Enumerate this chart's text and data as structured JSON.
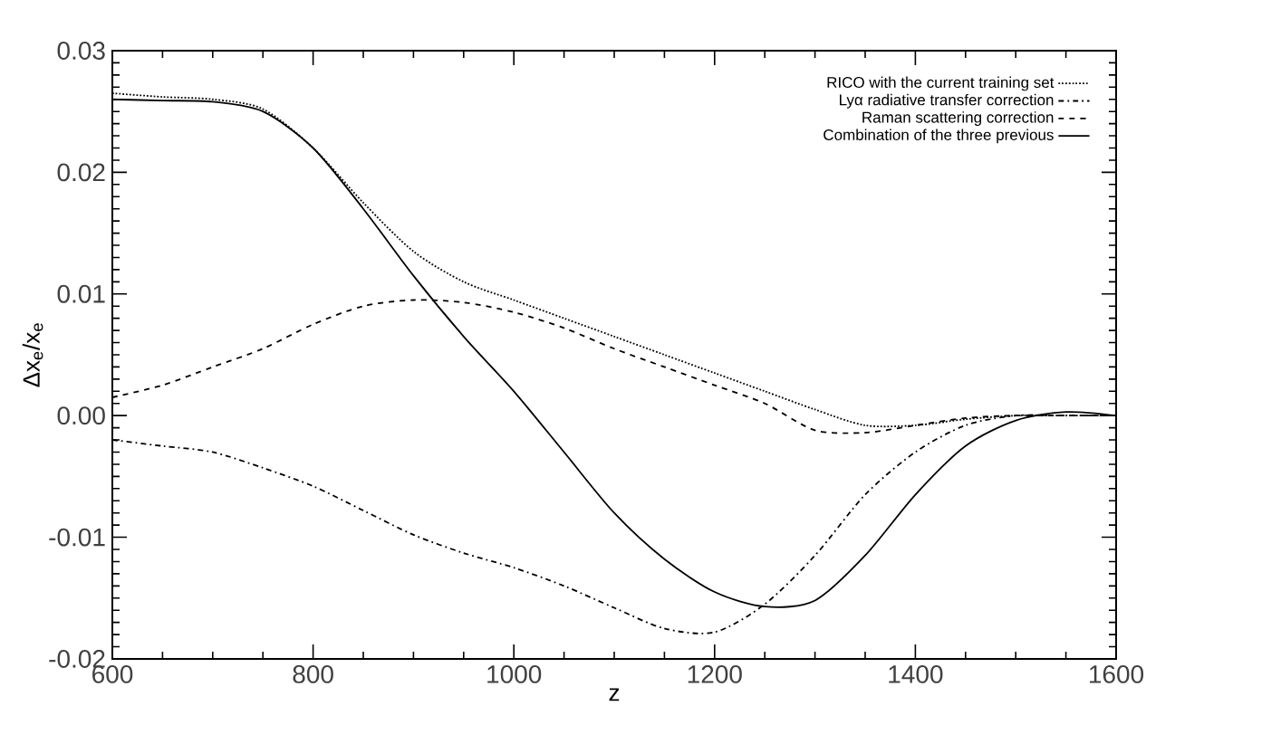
{
  "chart_data": {
    "type": "line",
    "xlabel": "z",
    "ylabel": "Δx$_{e}$/x$_{e}$",
    "xlim": [
      600,
      1600
    ],
    "ylim": [
      -0.02,
      0.03
    ],
    "xticks": [
      600,
      800,
      1000,
      1200,
      1400,
      1600
    ],
    "yticks": [
      {
        "value": -0.02,
        "label": "-0.02"
      },
      {
        "value": -0.01,
        "label": "-0.01"
      },
      {
        "value": 0,
        "label": "0.00"
      },
      {
        "value": 0.01,
        "label": "0.01"
      },
      {
        "value": 0.02,
        "label": "0.02"
      },
      {
        "value": 0.03,
        "label": "0.03"
      }
    ],
    "grid": false,
    "legend": "top right",
    "marker": "none",
    "x": [
      600,
      650,
      700,
      750,
      800,
      850,
      900,
      950,
      1000,
      1050,
      1100,
      1150,
      1200,
      1250,
      1300,
      1350,
      1400,
      1450,
      1500,
      1550,
      1600
    ],
    "series": [
      {
        "name": "RICO with the current training set",
        "color": "#000000",
        "line_style": "dotted",
        "values": [
          0.0265,
          0.0262,
          0.026,
          0.0252,
          0.022,
          0.0175,
          0.0135,
          0.011,
          0.0095,
          0.008,
          0.0065,
          0.005,
          0.0035,
          0.002,
          0.0005,
          -0.0008,
          -0.0008,
          -0.0003,
          0.0,
          0.0,
          0.0
        ]
      },
      {
        "name": "Lyα radiative transfer correction",
        "color": "#000000",
        "line_style": "dashdot",
        "values": [
          -0.002,
          -0.0025,
          -0.003,
          -0.0043,
          -0.0058,
          -0.0078,
          -0.0098,
          -0.0113,
          -0.0125,
          -0.014,
          -0.0158,
          -0.0175,
          -0.0178,
          -0.0155,
          -0.0115,
          -0.0065,
          -0.003,
          -0.0008,
          0.0,
          0.0,
          0.0
        ]
      },
      {
        "name": "Raman scattering correction",
        "color": "#000000",
        "line_style": "dashed",
        "values": [
          0.0015,
          0.0025,
          0.004,
          0.0055,
          0.0075,
          0.009,
          0.0095,
          0.0093,
          0.0085,
          0.0072,
          0.0055,
          0.004,
          0.0025,
          0.001,
          -0.0012,
          -0.0014,
          -0.0008,
          -0.0002,
          0.0,
          0.0,
          0.0
        ]
      },
      {
        "name": "Combination of the three previous",
        "color": "#000000",
        "line_style": "solid",
        "values": [
          0.026,
          0.0259,
          0.0258,
          0.025,
          0.022,
          0.017,
          0.0115,
          0.0065,
          0.002,
          -0.003,
          -0.008,
          -0.0118,
          -0.0145,
          -0.0157,
          -0.0152,
          -0.0115,
          -0.0065,
          -0.0025,
          -0.0004,
          0.0003,
          0.0
        ]
      }
    ]
  }
}
